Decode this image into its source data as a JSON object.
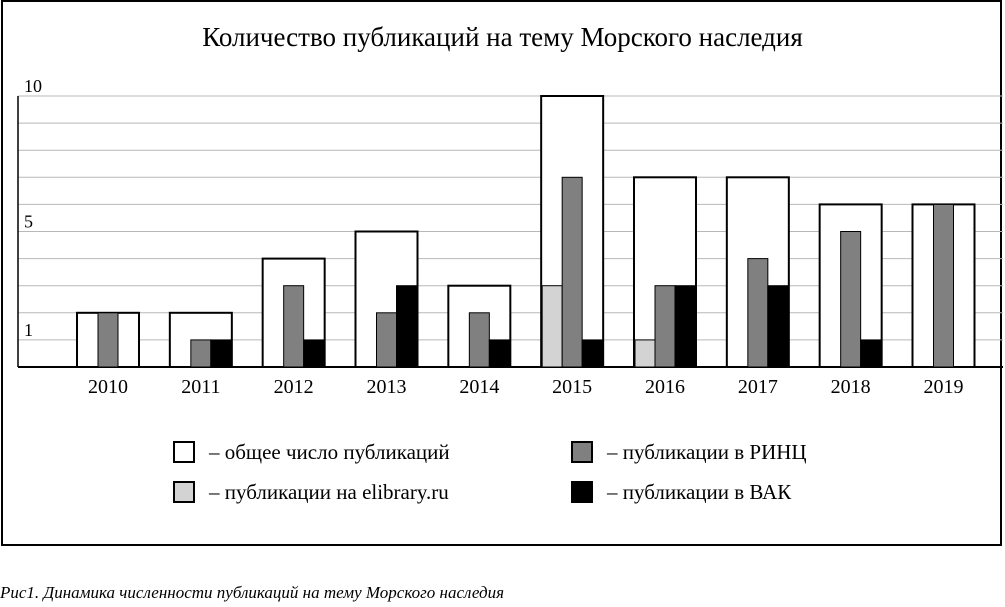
{
  "caption": "Рис1. Динамика численности публикаций на тему Морского наследия",
  "chart_data": {
    "type": "bar",
    "title": "Количество публикаций на тему Морского наследия",
    "categories": [
      "2010",
      "2011",
      "2012",
      "2013",
      "2014",
      "2015",
      "2016",
      "2017",
      "2018",
      "2019"
    ],
    "ytick_labels": [
      "1",
      "5",
      "10"
    ],
    "ylim": [
      0,
      10
    ],
    "grid": true,
    "series": [
      {
        "name": "– общее число публикаций",
        "color": "#ffffff",
        "values": [
          2,
          2,
          4,
          5,
          3,
          10,
          7,
          7,
          6,
          6
        ]
      },
      {
        "name": "– публикации на elibrary.ru",
        "color": "#d3d3d3",
        "values": [
          0,
          0,
          0,
          0,
          0,
          3,
          1,
          0,
          0,
          0
        ]
      },
      {
        "name": "– публикации в РИНЦ",
        "color": "#808080",
        "values": [
          2,
          1,
          3,
          2,
          2,
          7,
          3,
          4,
          5,
          6
        ]
      },
      {
        "name": "– публикации в ВАК",
        "color": "#000000",
        "values": [
          0,
          1,
          1,
          3,
          1,
          1,
          3,
          3,
          1,
          0
        ]
      }
    ]
  }
}
